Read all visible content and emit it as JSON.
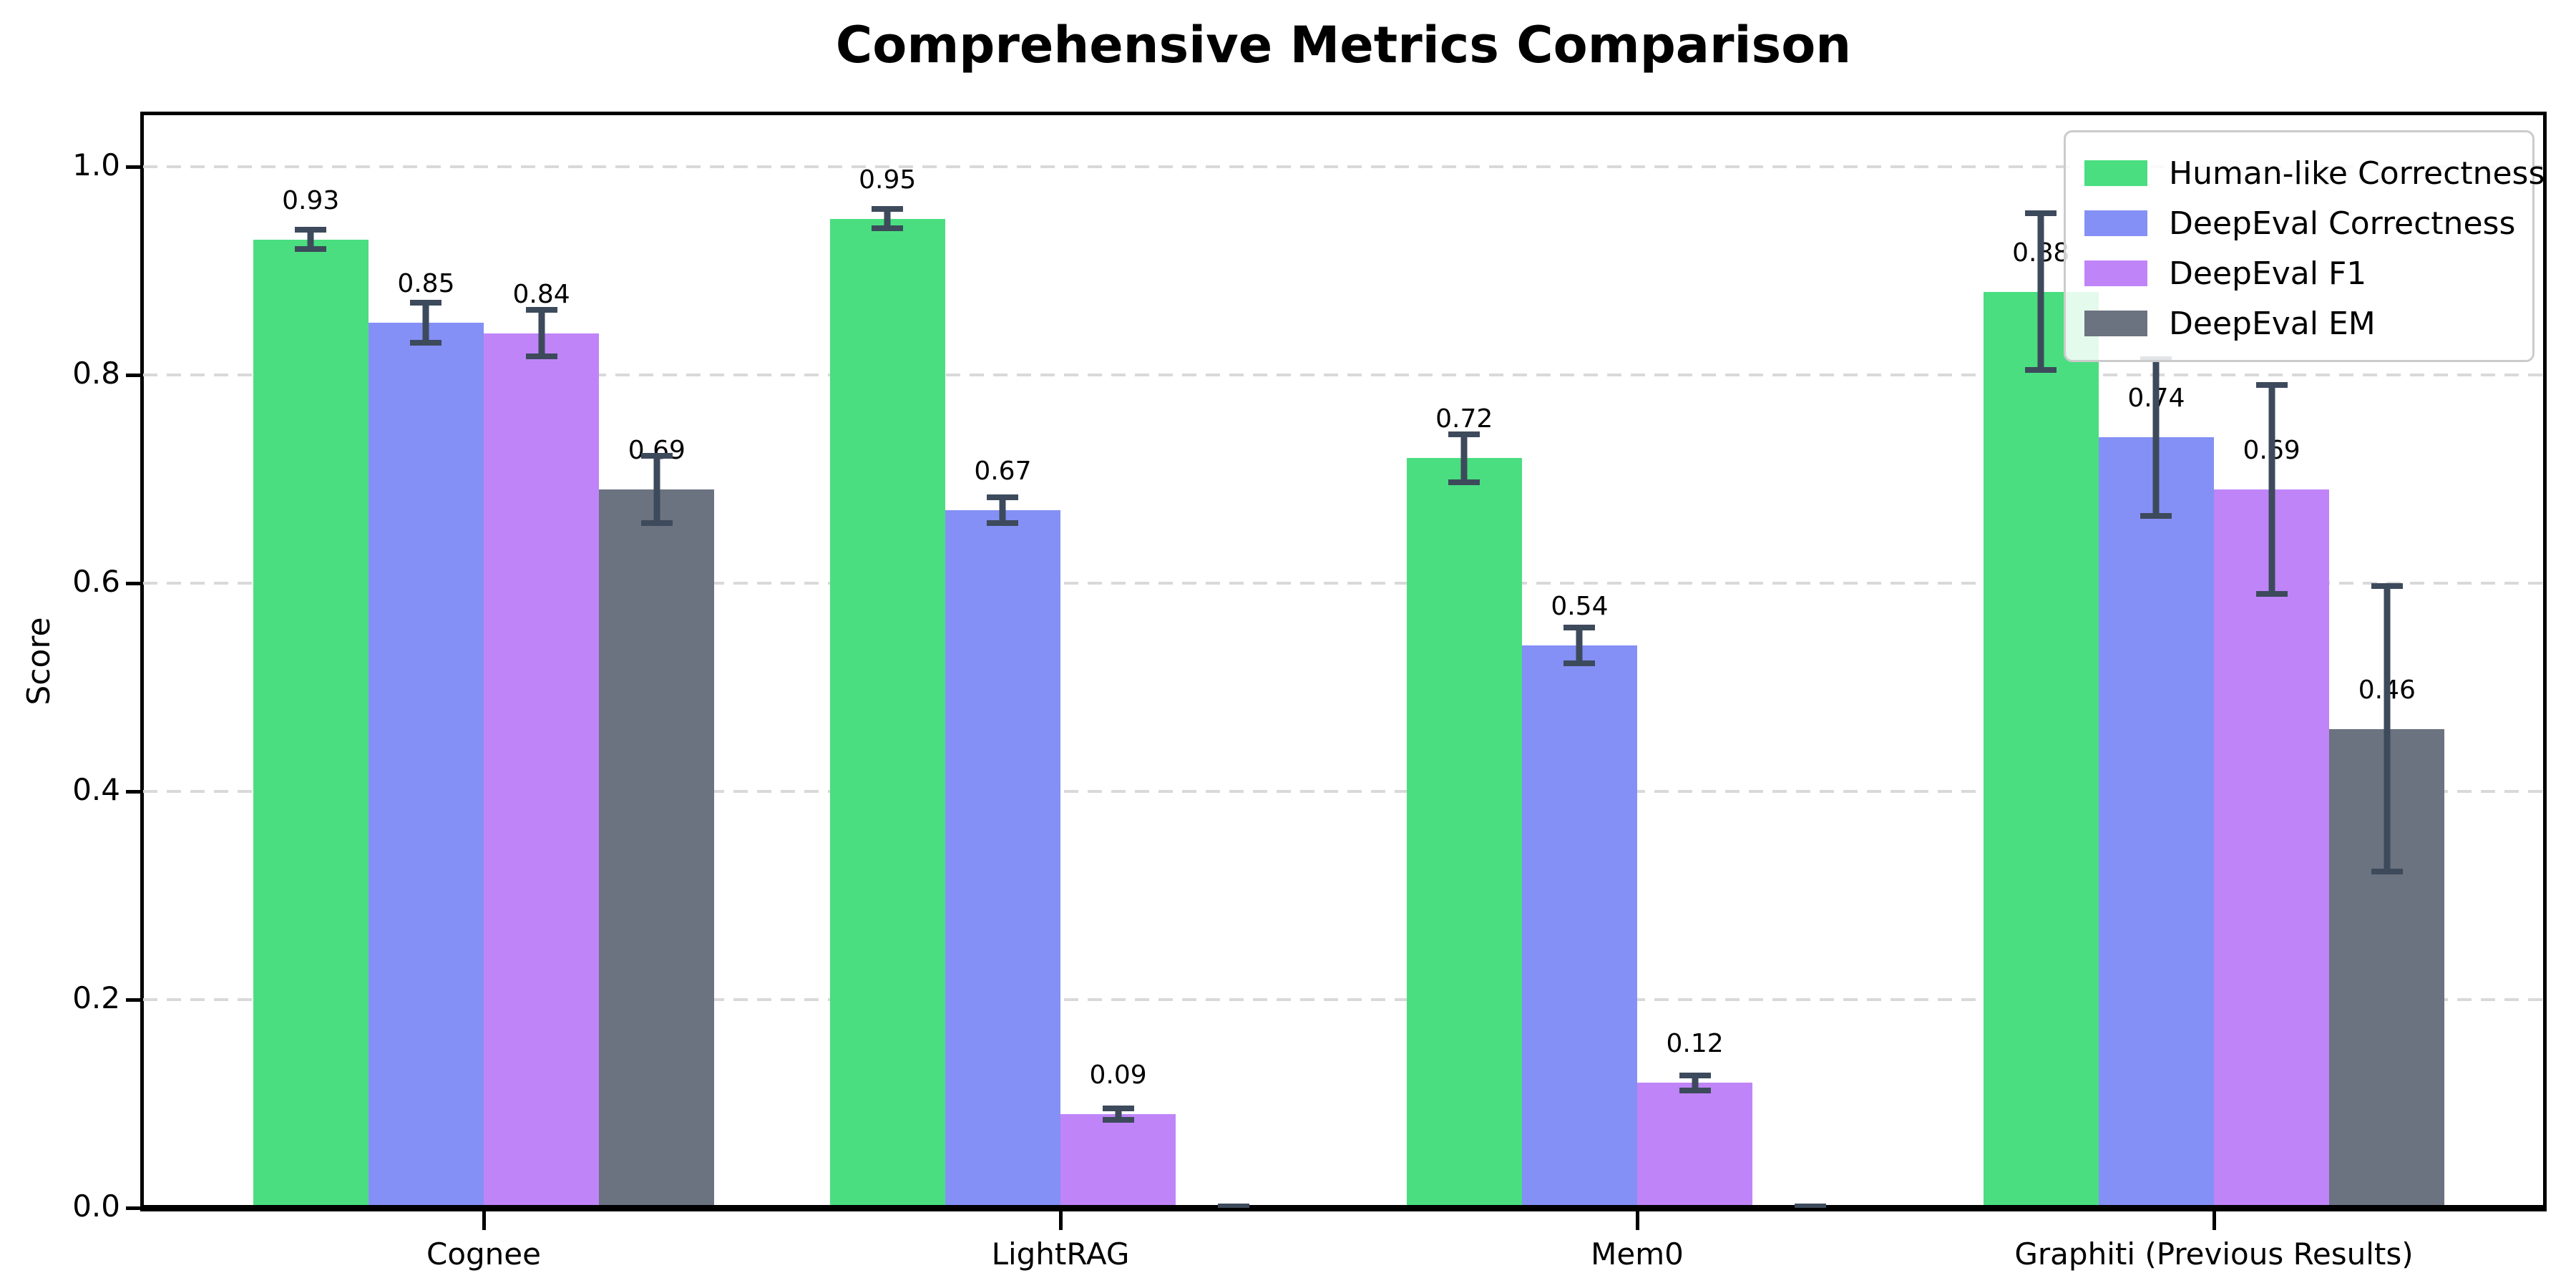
{
  "chart_data": {
    "type": "bar",
    "title": "Comprehensive Metrics Comparison",
    "ylabel": "Score",
    "xlabel": "",
    "categories": [
      "Cognee",
      "LightRAG",
      "Mem0",
      "Graphiti (Previous Results)"
    ],
    "series": [
      {
        "name": "Human-like Correctness",
        "color": "#4ade80",
        "values": [
          0.93,
          0.95,
          0.72,
          0.88
        ],
        "errors": [
          0.012,
          0.012,
          0.026,
          0.078
        ],
        "value_labels": [
          "0.93",
          "0.95",
          "0.72",
          "0.88"
        ]
      },
      {
        "name": "DeepEval Correctness",
        "color": "#8490f5",
        "values": [
          0.85,
          0.67,
          0.54,
          0.74
        ],
        "errors": [
          0.022,
          0.015,
          0.02,
          0.078
        ],
        "value_labels": [
          "0.85",
          "0.67",
          "0.54",
          "0.74"
        ]
      },
      {
        "name": "DeepEval F1",
        "color": "#bf85f8",
        "values": [
          0.84,
          0.09,
          0.12,
          0.69
        ],
        "errors": [
          0.025,
          0.008,
          0.01,
          0.103
        ],
        "value_labels": [
          "0.84",
          "0.09",
          "0.12",
          "0.69"
        ]
      },
      {
        "name": "DeepEval EM",
        "color": "#6b7280",
        "values": [
          0.69,
          0.0,
          0.0,
          0.46
        ],
        "errors": [
          0.035,
          0.004,
          0.004,
          0.14
        ],
        "value_labels": [
          "0.69",
          "",
          "",
          "0.46"
        ]
      }
    ],
    "yticks": [
      "0.0",
      "0.2",
      "0.4",
      "0.6",
      "0.8",
      "1.0"
    ],
    "ylim": [
      0,
      1.05
    ],
    "grid": {
      "axis": "y",
      "style": "dashed",
      "color": "#d9d9d9"
    },
    "legend": {
      "position": "upper right",
      "border_color": "#cbcbcb"
    },
    "error_bar_color": "#3d4a5c",
    "value_label_offset": 0.02
  }
}
